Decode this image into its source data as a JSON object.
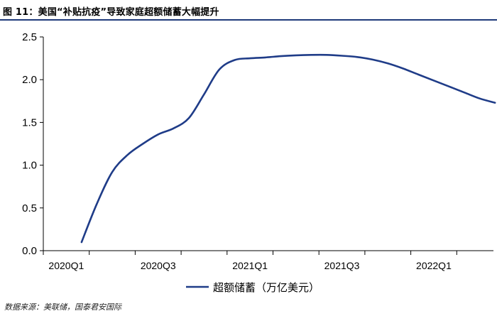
{
  "figure": {
    "title": "图 11：美国“补贴抗疫”导致家庭超额储蓄大幅提升",
    "source": "数据来源：美联储，国泰君安国际"
  },
  "chart_data": {
    "type": "line",
    "x_ticks": [
      "2020Q1",
      "2020Q3",
      "2021Q1",
      "2021Q3",
      "2022Q1"
    ],
    "y_ticks": [
      "0.0",
      "0.5",
      "1.0",
      "1.5",
      "2.0",
      "2.5"
    ],
    "ylim": [
      0,
      2.5
    ],
    "grid": false,
    "legend_position": "bottom-center",
    "series": [
      {
        "name": "超额储蓄（万亿美元）",
        "color": "#1f3c88",
        "x": [
          "2020-03",
          "2020-04",
          "2020-05",
          "2020-06",
          "2020-07",
          "2020-08",
          "2020-09",
          "2020-10",
          "2020-11",
          "2020-12",
          "2021-01",
          "2021-02",
          "2021-03",
          "2021-04",
          "2021-05",
          "2021-06",
          "2021-07",
          "2021-08",
          "2021-09",
          "2021-10",
          "2021-11",
          "2021-12",
          "2022-01",
          "2022-02",
          "2022-03",
          "2022-04",
          "2022-05",
          "2022-06"
        ],
        "values": [
          0.1,
          0.55,
          0.92,
          1.12,
          1.25,
          1.36,
          1.43,
          1.55,
          1.83,
          2.12,
          2.23,
          2.25,
          2.26,
          2.275,
          2.285,
          2.29,
          2.29,
          2.28,
          2.265,
          2.235,
          2.19,
          2.13,
          2.06,
          1.99,
          1.92,
          1.85,
          1.78,
          1.73
        ]
      }
    ]
  }
}
